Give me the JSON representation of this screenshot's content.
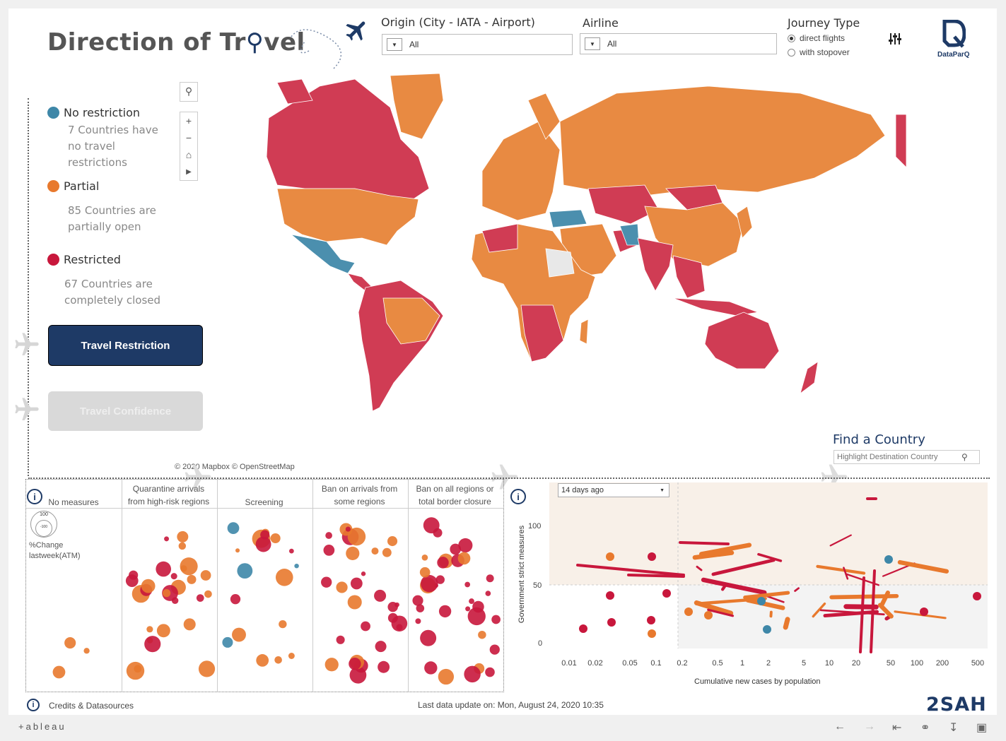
{
  "header": {
    "title_pre": "Direction of Tr",
    "title_post": "vel",
    "origin_label": "Origin   (City - IATA - Airport)",
    "origin_value": "All",
    "airline_label": "Airline",
    "airline_value": "All",
    "journey_label": "Journey Type",
    "journey_options": [
      "direct flights",
      "with stopover"
    ],
    "journey_selected": "direct flights",
    "logo_text": "DataParQ"
  },
  "legend": {
    "items": [
      {
        "label": "No restriction",
        "color": "#3e87a8",
        "desc_lines": [
          "7 Countries have",
          "no travel",
          "restrictions"
        ]
      },
      {
        "label": "Partial",
        "color": "#e8792d",
        "desc_lines": [
          "85 Countries are",
          "partially open"
        ]
      },
      {
        "label": "Restricted",
        "color": "#c8173c",
        "desc_lines": [
          "67 Countries are",
          "completely closed"
        ]
      }
    ]
  },
  "buttons": {
    "travel_restriction": "Travel Restriction",
    "travel_confidence": "Travel Confidence"
  },
  "map": {
    "attribution": "© 2020 Mapbox © OpenStreetMap",
    "colors": {
      "restricted": "#d03c54",
      "partial": "#e88a42",
      "none": "#4b8fae",
      "nodata": "#e8e8e8"
    }
  },
  "find_country": {
    "title": "Find a Country",
    "placeholder": "Highlight Destination Country"
  },
  "bubble_panel": {
    "columns": [
      {
        "lines": [
          "No measures"
        ]
      },
      {
        "lines": [
          "Quarantine arrivals",
          "from high-risk regions"
        ]
      },
      {
        "lines": [
          "Screening"
        ]
      },
      {
        "lines": [
          "Ban on arrivals from",
          "some regions"
        ]
      },
      {
        "lines": [
          "Ban on all regions or",
          "total border closure"
        ]
      }
    ],
    "size_legend_top": "100",
    "size_legend_bottom": "-100",
    "size_legend_label_lines": [
      "%Change",
      "lastweek(ATM)"
    ]
  },
  "scatter": {
    "period_select": "14 days ago",
    "ylabel": "Government strict measures",
    "xlabel": "Cumulative new cases by population",
    "yticks": [
      "100",
      "50",
      "0"
    ],
    "xticks": [
      "0.01",
      "0.02",
      "0.05",
      "0.1",
      "0.2",
      "0.5",
      "1",
      "2",
      "5",
      "10",
      "20",
      "50",
      "100",
      "200",
      "500"
    ]
  },
  "footer": {
    "credits": "Credits & Datasources",
    "last_update": "Last data update on: Mon, August 24, 2020 10:35",
    "brand": "2SAH",
    "tableau": "+ableau"
  }
}
